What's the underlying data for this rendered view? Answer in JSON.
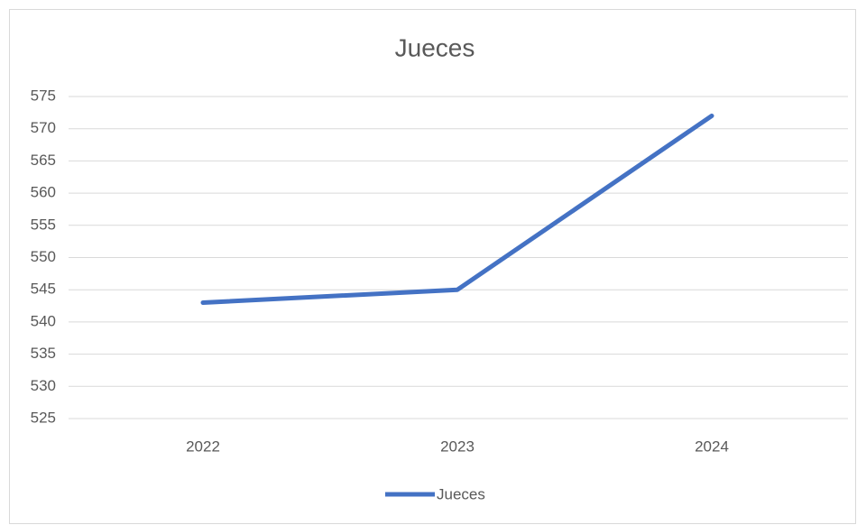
{
  "chart_data": {
    "type": "line",
    "title": "Jueces",
    "categories": [
      "2022",
      "2023",
      "2024"
    ],
    "series": [
      {
        "name": "Jueces",
        "color": "#4472c4",
        "values": [
          543,
          545,
          572
        ]
      }
    ],
    "ylim": [
      525,
      575
    ],
    "yticks": [
      525,
      530,
      535,
      540,
      545,
      550,
      555,
      560,
      565,
      570,
      575
    ],
    "grid": true,
    "legend": "bottom"
  }
}
